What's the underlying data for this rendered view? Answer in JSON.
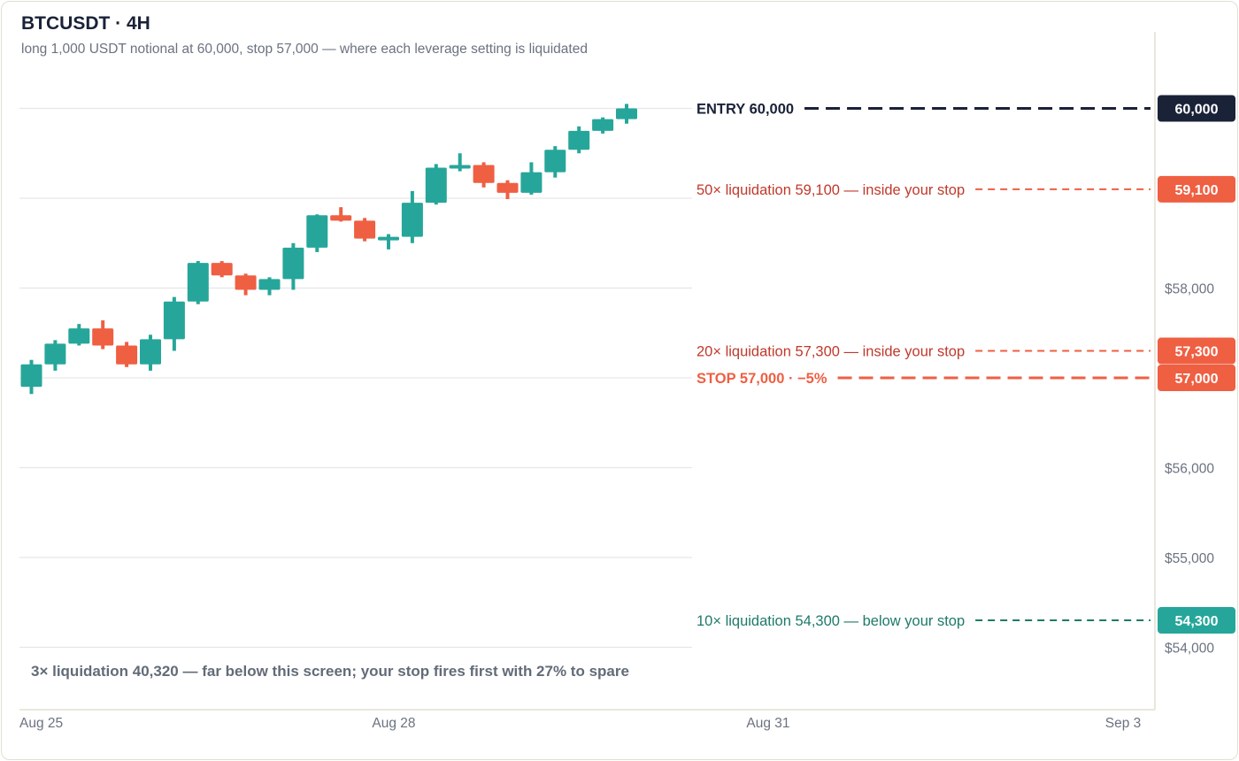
{
  "header": {
    "title": "BTCUSDT · 4H",
    "subtitle": "long 1,000 USDT notional at 60,000, stop 57,000 — where each leverage setting is liquidated"
  },
  "colors": {
    "up": "#26a69a",
    "down": "#ef5f42",
    "entry": "#1a2238",
    "liq_red_text": "#c0392b",
    "liq_green_text": "#1e7a6a",
    "grid": "#e6e6e6",
    "axis_text": "#6b7280"
  },
  "chart_data": {
    "type": "candlestick",
    "title": "BTCUSDT · 4H",
    "ylim": [
      53300,
      60950
    ],
    "y_ticks": [
      {
        "value": 58000,
        "label": "$58,000"
      },
      {
        "value": 56000,
        "label": "$56,000"
      },
      {
        "value": 55000,
        "label": "$55,000"
      },
      {
        "value": 54000,
        "label": "$54,000"
      }
    ],
    "x_ticks": [
      "Aug 25",
      "Aug 28",
      "Aug 31",
      "Sep 3"
    ],
    "grid": true,
    "candles": [
      {
        "o": 56900,
        "h": 57200,
        "l": 56820,
        "c": 57150
      },
      {
        "o": 57150,
        "h": 57420,
        "l": 57080,
        "c": 57380
      },
      {
        "o": 57380,
        "h": 57600,
        "l": 57360,
        "c": 57550
      },
      {
        "o": 57550,
        "h": 57640,
        "l": 57320,
        "c": 57360
      },
      {
        "o": 57360,
        "h": 57400,
        "l": 57120,
        "c": 57150
      },
      {
        "o": 57150,
        "h": 57480,
        "l": 57080,
        "c": 57430
      },
      {
        "o": 57430,
        "h": 57900,
        "l": 57300,
        "c": 57850
      },
      {
        "o": 57850,
        "h": 58300,
        "l": 57820,
        "c": 58280
      },
      {
        "o": 58280,
        "h": 58300,
        "l": 58120,
        "c": 58140
      },
      {
        "o": 58140,
        "h": 58160,
        "l": 57920,
        "c": 57980
      },
      {
        "o": 57980,
        "h": 58120,
        "l": 57920,
        "c": 58100
      },
      {
        "o": 58100,
        "h": 58500,
        "l": 57980,
        "c": 58450
      },
      {
        "o": 58450,
        "h": 58820,
        "l": 58400,
        "c": 58810
      },
      {
        "o": 58810,
        "h": 58900,
        "l": 58740,
        "c": 58750
      },
      {
        "o": 58750,
        "h": 58780,
        "l": 58520,
        "c": 58550
      },
      {
        "o": 58550,
        "h": 58600,
        "l": 58430,
        "c": 58570
      },
      {
        "o": 58570,
        "h": 59080,
        "l": 58500,
        "c": 58950
      },
      {
        "o": 58950,
        "h": 59380,
        "l": 58930,
        "c": 59340
      },
      {
        "o": 59340,
        "h": 59500,
        "l": 59300,
        "c": 59370
      },
      {
        "o": 59370,
        "h": 59400,
        "l": 59120,
        "c": 59170
      },
      {
        "o": 59170,
        "h": 59200,
        "l": 58990,
        "c": 59060
      },
      {
        "o": 59060,
        "h": 59400,
        "l": 59040,
        "c": 59290
      },
      {
        "o": 59290,
        "h": 59580,
        "l": 59230,
        "c": 59540
      },
      {
        "o": 59540,
        "h": 59800,
        "l": 59500,
        "c": 59750
      },
      {
        "o": 59750,
        "h": 59900,
        "l": 59720,
        "c": 59880
      },
      {
        "o": 59880,
        "h": 60050,
        "l": 59830,
        "c": 60000
      }
    ],
    "levels": [
      {
        "value": 60000,
        "label": "ENTRY 60,000",
        "tag": "60,000",
        "kind": "entry"
      },
      {
        "value": 59100,
        "label": "50× liquidation 59,100 — inside your stop",
        "tag": "59,100",
        "kind": "liq-red"
      },
      {
        "value": 57300,
        "label": "20× liquidation 57,300 — inside your stop",
        "tag": "57,300",
        "kind": "liq-red"
      },
      {
        "value": 57000,
        "label": "STOP 57,000 · −5%",
        "tag": "57,000",
        "kind": "stop"
      },
      {
        "value": 54300,
        "label": "10× liquidation 54,300 — below your stop",
        "tag": "54,300",
        "kind": "liq-green"
      }
    ],
    "footnote": "3× liquidation 40,320 — far below this screen; your stop fires first with 27% to spare"
  }
}
